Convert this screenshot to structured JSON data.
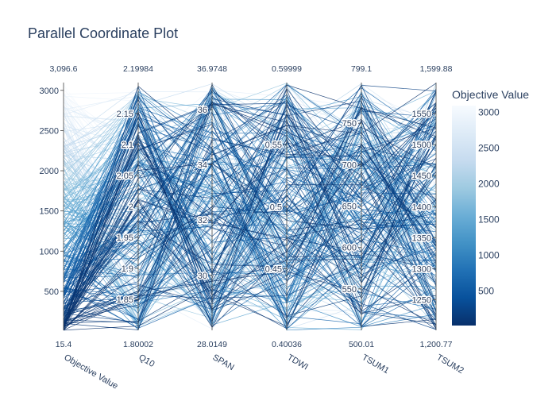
{
  "chart_data": {
    "type": "parallel_coordinates",
    "title": "Parallel Coordinate Plot",
    "color_scale": {
      "title": "Objective Value",
      "colors": [
        "#08306b",
        "#08519c",
        "#2171b5",
        "#4292c6",
        "#6baed6",
        "#9ecae1",
        "#c6dbef",
        "#deebf7",
        "#f7fbff"
      ],
      "range": [
        15.4,
        3096.6
      ],
      "ticks": [
        "500",
        "1000",
        "1500",
        "2000",
        "2500",
        "3000"
      ],
      "tick_values": [
        500,
        1000,
        1500,
        2000,
        2500,
        3000
      ]
    },
    "line_count": 300,
    "dimensions": [
      {
        "label": "Objective Value",
        "min": 15.4,
        "max": 3096.6,
        "min_label": "15.4",
        "max_label": "3,096.6",
        "ticks": [
          "500",
          "1000",
          "1500",
          "2000",
          "2500",
          "3000"
        ],
        "tick_values": [
          500,
          1000,
          1500,
          2000,
          2500,
          3000
        ],
        "tick_side": "left"
      },
      {
        "label": "Q10",
        "min": 1.80002,
        "max": 2.19984,
        "min_label": "1.80002",
        "max_label": "2.19984",
        "ticks": [
          "1.85",
          "1.9",
          "1.95",
          "2",
          "2.05",
          "2.1",
          "2.15"
        ],
        "tick_values": [
          1.85,
          1.9,
          1.95,
          2.0,
          2.05,
          2.1,
          2.15
        ],
        "tick_side": "left"
      },
      {
        "label": "SPAN",
        "min": 28.0149,
        "max": 36.9748,
        "min_label": "28.0149",
        "max_label": "36.9748",
        "ticks": [
          "30",
          "32",
          "34",
          "36"
        ],
        "tick_values": [
          30,
          32,
          34,
          36
        ],
        "tick_side": "left"
      },
      {
        "label": "TDWI",
        "min": 0.40036,
        "max": 0.59999,
        "min_label": "0.40036",
        "max_label": "0.59999",
        "ticks": [
          "0.45",
          "0.5",
          "0.55"
        ],
        "tick_values": [
          0.45,
          0.5,
          0.55
        ],
        "tick_side": "left"
      },
      {
        "label": "TSUM1",
        "min": 500.01,
        "max": 799.1,
        "min_label": "500.01",
        "max_label": "799.1",
        "ticks": [
          "550",
          "600",
          "650",
          "700",
          "750"
        ],
        "tick_values": [
          550,
          600,
          650,
          700,
          750
        ],
        "tick_side": "left"
      },
      {
        "label": "TSUM2",
        "min": 1200.77,
        "max": 1599.88,
        "min_label": "1,200.77",
        "max_label": "1,599.88",
        "ticks": [
          "1250",
          "1300",
          "1350",
          "1400",
          "1450",
          "1500",
          "1550"
        ],
        "tick_values": [
          1250,
          1300,
          1350,
          1400,
          1450,
          1500,
          1550
        ],
        "tick_side": "left"
      }
    ]
  }
}
